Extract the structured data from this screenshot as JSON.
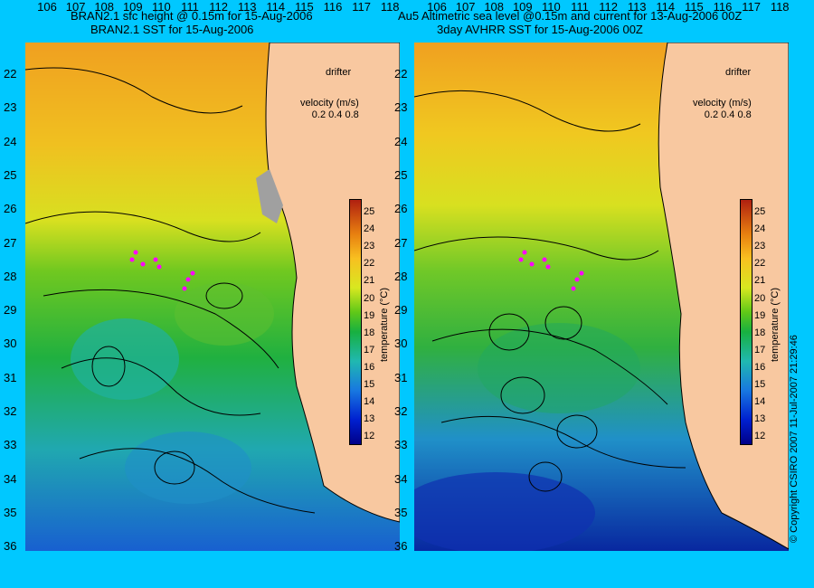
{
  "left_panel": {
    "title_line1": "BRAN2.1 sfc height @ 0.15m for 15-Aug-2006",
    "title_line2": "BRAN2.1 SST for 15-Aug-2006"
  },
  "right_panel": {
    "title_line1": "Au5 Altimetric sea level  @0.15m and current for 13-Aug-2006 00Z",
    "title_line2": "3day AVHRR SST for 15-Aug-2006 00Z"
  },
  "legend": {
    "drifter_label": "drifter",
    "velocity_label": "velocity (m/s)",
    "velocity_scale": "0.2 0.4 0.8",
    "drifter_color": "#ff00ff"
  },
  "colorbar": {
    "unit_label": "temperature (°C)",
    "ticks": [
      "25",
      "24",
      "23",
      "22",
      "21",
      "20",
      "19",
      "18",
      "17",
      "16",
      "15",
      "14",
      "13",
      "12"
    ],
    "min": 12,
    "max": 25
  },
  "axes": {
    "lat_labels": [
      "22",
      "23",
      "24",
      "25",
      "26",
      "27",
      "28",
      "29",
      "30",
      "31",
      "32",
      "33",
      "34",
      "35",
      "36"
    ],
    "lon_labels": [
      "106",
      "107",
      "108",
      "109",
      "110",
      "111",
      "112",
      "113",
      "114",
      "115",
      "116",
      "117",
      "118"
    ]
  },
  "colors": {
    "background": "#00c8ff",
    "land": "#f8c8a0",
    "contour": "#000000"
  },
  "copyright": "© Copyright CSIRO 2007  11-Jul-2007 21:29:46"
}
